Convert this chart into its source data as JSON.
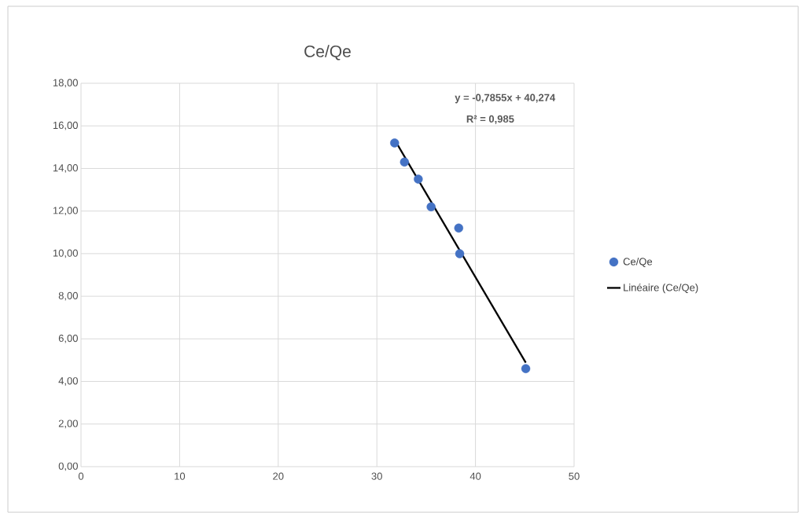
{
  "chart_data": {
    "type": "scatter",
    "title": "Ce/Qe",
    "xlim": [
      0,
      50
    ],
    "xticks": [
      0,
      10,
      20,
      30,
      40,
      50
    ],
    "ylim": [
      0,
      18
    ],
    "yticks": [
      {
        "value": 0,
        "label": "0,00"
      },
      {
        "value": 2,
        "label": "2,00"
      },
      {
        "value": 4,
        "label": "4,00"
      },
      {
        "value": 6,
        "label": "6,00"
      },
      {
        "value": 8,
        "label": "8,00"
      },
      {
        "value": 10,
        "label": "10,00"
      },
      {
        "value": 12,
        "label": "12,00"
      },
      {
        "value": 14,
        "label": "14,00"
      },
      {
        "value": 16,
        "label": "16,00"
      },
      {
        "value": 18,
        "label": "18,00"
      }
    ],
    "grid": true,
    "legend": "right",
    "series": [
      {
        "name": "Ce/Qe",
        "marker": "circle",
        "color": "#4472c4",
        "x": [
          31.8,
          32.8,
          34.2,
          35.5,
          38.3,
          38.4,
          45.1
        ],
        "values": [
          15.2,
          14.3,
          13.5,
          12.2,
          11.2,
          10.0,
          4.6
        ]
      },
      {
        "name": "Linéaire (Ce/Qe)",
        "type": "line",
        "color": "#000000",
        "x": [
          31.8,
          45.1
        ],
        "values": [
          15.35,
          4.88
        ]
      }
    ],
    "annotations": [
      "y = -0,7855x + 40,274",
      "R² = 0,985"
    ]
  }
}
